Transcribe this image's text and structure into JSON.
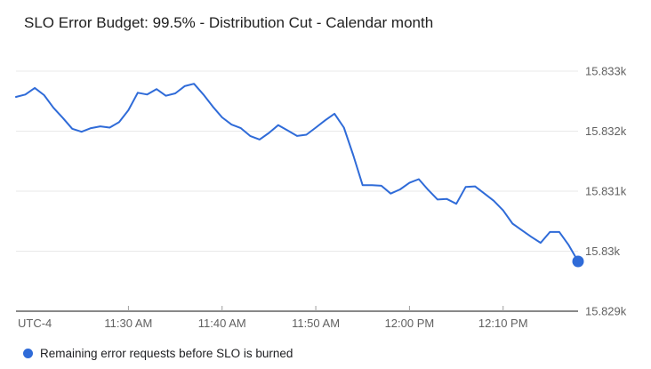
{
  "chart_data": {
    "type": "line",
    "title": "SLO Error Budget: 99.5% - Distribution Cut - Calendar month",
    "utc_offset_label": "UTC-4",
    "grid": true,
    "legend_position": "bottom-left",
    "ylim": [
      15829,
      15833
    ],
    "yticks": [
      {
        "label": "15.833k",
        "value": 15833
      },
      {
        "label": "15.832k",
        "value": 15832
      },
      {
        "label": "15.831k",
        "value": 15831
      },
      {
        "label": "15.83k",
        "value": 15830
      },
      {
        "label": "15.829k",
        "value": 15829
      }
    ],
    "xticks": [
      {
        "label": "11:30 AM",
        "index": 12
      },
      {
        "label": "11:40 AM",
        "index": 22
      },
      {
        "label": "11:50 AM",
        "index": 32
      },
      {
        "label": "12:00 PM",
        "index": 42
      },
      {
        "label": "12:10 PM",
        "index": 52
      }
    ],
    "series": [
      {
        "name": "Remaining error requests before SLO is burned",
        "color": "#2f6bd8",
        "end_dot": true,
        "x": [
          "11:18",
          "11:19",
          "11:20",
          "11:21",
          "11:22",
          "11:23",
          "11:24",
          "11:25",
          "11:26",
          "11:27",
          "11:28",
          "11:29",
          "11:30",
          "11:31",
          "11:32",
          "11:33",
          "11:34",
          "11:35",
          "11:36",
          "11:37",
          "11:38",
          "11:39",
          "11:40",
          "11:41",
          "11:42",
          "11:43",
          "11:44",
          "11:45",
          "11:46",
          "11:47",
          "11:48",
          "11:49",
          "11:50",
          "11:51",
          "11:52",
          "11:53",
          "11:54",
          "11:55",
          "11:56",
          "11:57",
          "11:58",
          "11:59",
          "12:00",
          "12:01",
          "12:02",
          "12:03",
          "12:04",
          "12:05",
          "12:06",
          "12:07",
          "12:08",
          "12:09",
          "12:10",
          "12:11",
          "12:12",
          "12:13",
          "12:14",
          "12:15",
          "12:16",
          "12:17",
          "12:18"
        ],
        "values": [
          15832.57,
          15832.61,
          15832.72,
          15832.6,
          15832.39,
          15832.22,
          15832.04,
          15831.99,
          15832.05,
          15832.08,
          15832.06,
          15832.15,
          15832.35,
          15832.64,
          15832.61,
          15832.7,
          15832.59,
          15832.63,
          15832.75,
          15832.79,
          15832.61,
          15832.41,
          15832.23,
          15832.11,
          15832.05,
          15831.92,
          15831.86,
          15831.97,
          15832.1,
          15832.01,
          15831.92,
          15831.94,
          15832.06,
          15832.18,
          15832.29,
          15832.06,
          15831.6,
          15831.1,
          15831.1,
          15831.09,
          15830.96,
          15831.03,
          15831.14,
          15831.2,
          15831.02,
          15830.86,
          15830.87,
          15830.79,
          15831.07,
          15831.08,
          15830.96,
          15830.84,
          15830.68,
          15830.46,
          15830.35,
          15830.24,
          15830.14,
          15830.32,
          15830.32,
          15830.1,
          15829.83
        ]
      }
    ]
  },
  "styles": {
    "gridline_color": "#e9e9e9",
    "axis_line_color": "#424242",
    "tick_color": "#9e9e9e",
    "axis_label_color": "#616161"
  }
}
